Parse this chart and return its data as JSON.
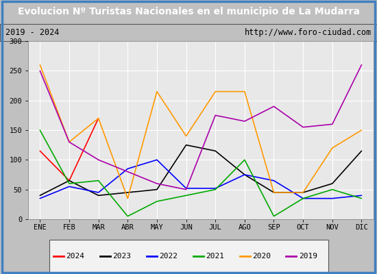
{
  "title": "Evolucion Nº Turistas Nacionales en el municipio de La Mudarra",
  "subtitle_left": "2019 - 2024",
  "subtitle_right": "http://www.foro-ciudad.com",
  "months": [
    "ENE",
    "FEB",
    "MAR",
    "ABR",
    "MAY",
    "JUN",
    "JUL",
    "AGO",
    "SEP",
    "OCT",
    "NOV",
    "DIC"
  ],
  "series": {
    "2024": [
      115,
      65,
      170,
      null,
      null,
      null,
      null,
      null,
      null,
      null,
      null,
      null
    ],
    "2023": [
      40,
      65,
      40,
      45,
      50,
      125,
      115,
      75,
      45,
      45,
      60,
      115
    ],
    "2022": [
      35,
      55,
      45,
      85,
      100,
      52,
      52,
      75,
      65,
      35,
      35,
      40
    ],
    "2021": [
      150,
      60,
      65,
      5,
      30,
      40,
      50,
      100,
      5,
      35,
      50,
      35
    ],
    "2020": [
      260,
      130,
      170,
      35,
      215,
      140,
      215,
      215,
      45,
      45,
      120,
      150
    ],
    "2019": [
      250,
      130,
      100,
      80,
      60,
      50,
      175,
      165,
      190,
      155,
      160,
      260
    ]
  },
  "colors": {
    "2024": "#ff0000",
    "2023": "#000000",
    "2022": "#0000ff",
    "2021": "#00aa00",
    "2020": "#ff9900",
    "2019": "#aa00aa"
  },
  "ylim": [
    0,
    300
  ],
  "yticks": [
    0,
    50,
    100,
    150,
    200,
    250,
    300
  ],
  "title_bg": "#4080c0",
  "title_color": "#ffffff",
  "subtitle_bg": "#d8d8d8",
  "plot_bg": "#e8e8e8",
  "grid_color": "#ffffff",
  "outer_border_color": "#4080c0",
  "years_order": [
    "2024",
    "2023",
    "2022",
    "2021",
    "2020",
    "2019"
  ]
}
